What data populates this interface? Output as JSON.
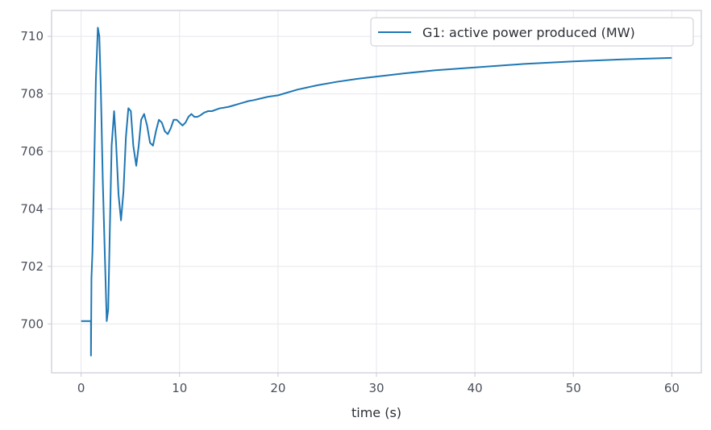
{
  "chart_data": {
    "type": "line",
    "title": "",
    "xlabel": "time (s)",
    "ylabel": "",
    "xlim": [
      -3,
      63
    ],
    "ylim": [
      698.3,
      710.9
    ],
    "xticks": [
      0,
      10,
      20,
      30,
      40,
      50,
      60
    ],
    "yticks": [
      700,
      702,
      704,
      706,
      708,
      710
    ],
    "grid": true,
    "legend_position": "top-right",
    "series": [
      {
        "name": "G1: active power produced (MW)",
        "color": "#1f77b4",
        "x": [
          0,
          1.0,
          1.0,
          1.05,
          1.15,
          1.3,
          1.5,
          1.7,
          1.85,
          2.0,
          2.2,
          2.4,
          2.6,
          2.75,
          2.9,
          3.1,
          3.35,
          3.55,
          3.8,
          4.05,
          4.3,
          4.55,
          4.8,
          5.05,
          5.3,
          5.6,
          5.85,
          6.1,
          6.4,
          6.7,
          7.0,
          7.3,
          7.6,
          7.9,
          8.2,
          8.5,
          8.8,
          9.1,
          9.4,
          9.7,
          10.0,
          10.3,
          10.6,
          10.9,
          11.2,
          11.5,
          11.8,
          12.1,
          12.5,
          12.9,
          13.3,
          13.7,
          14.1,
          14.5,
          15.0,
          15.5,
          16.0,
          16.5,
          17.0,
          17.5,
          18.0,
          19.0,
          20.0,
          22.0,
          24.0,
          26.0,
          28.0,
          30.0,
          33.0,
          36.0,
          40.0,
          45.0,
          50.0,
          55.0,
          60.0
        ],
        "y": [
          700.1,
          700.1,
          698.9,
          701.6,
          702.5,
          705.0,
          708.5,
          710.3,
          710.0,
          708.2,
          705.0,
          702.5,
          700.1,
          700.5,
          703.0,
          706.2,
          707.4,
          706.3,
          704.5,
          703.6,
          704.6,
          706.5,
          707.5,
          707.4,
          706.2,
          705.5,
          706.2,
          707.1,
          707.3,
          706.9,
          706.3,
          706.2,
          706.7,
          707.1,
          707.0,
          706.7,
          706.6,
          706.8,
          707.1,
          707.1,
          707.0,
          706.9,
          707.0,
          707.2,
          707.3,
          707.2,
          707.2,
          707.25,
          707.35,
          707.4,
          707.4,
          707.45,
          707.5,
          707.52,
          707.55,
          707.6,
          707.65,
          707.7,
          707.75,
          707.78,
          707.82,
          707.9,
          707.95,
          708.15,
          708.3,
          708.42,
          708.52,
          708.6,
          708.72,
          708.82,
          708.92,
          709.04,
          709.13,
          709.2,
          709.25
        ]
      }
    ]
  }
}
